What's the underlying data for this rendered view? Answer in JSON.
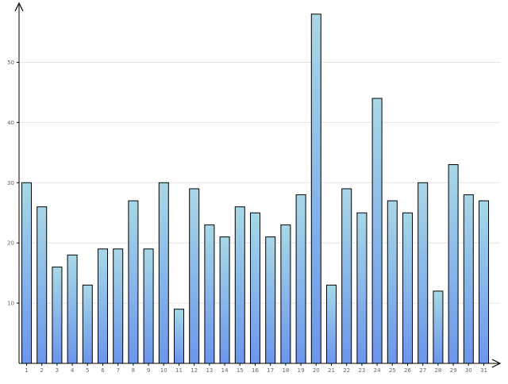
{
  "chart_data": {
    "type": "bar",
    "categories": [
      "1",
      "2",
      "3",
      "4",
      "5",
      "6",
      "7",
      "8",
      "9",
      "10",
      "11",
      "12",
      "13",
      "14",
      "15",
      "16",
      "17",
      "18",
      "19",
      "20",
      "21",
      "22",
      "23",
      "24",
      "25",
      "26",
      "27",
      "28",
      "29",
      "30",
      "31"
    ],
    "values": [
      30,
      26,
      16,
      18,
      13,
      19,
      19,
      27,
      19,
      30,
      9,
      29,
      23,
      21,
      26,
      25,
      21,
      23,
      28,
      58,
      13,
      29,
      25,
      44,
      27,
      25,
      30,
      12,
      33,
      28,
      27
    ],
    "yticks": [
      10,
      20,
      30,
      40,
      50
    ],
    "ylim": [
      0,
      60
    ],
    "grid": true,
    "legend": "none",
    "colors": {
      "bar_top": "#a8d8e6",
      "bar_bottom": "#6b96ec",
      "bar_stroke": "#000000",
      "grid": "#e3e3e3",
      "axis": "#000000",
      "tick_label": "#666666"
    }
  }
}
